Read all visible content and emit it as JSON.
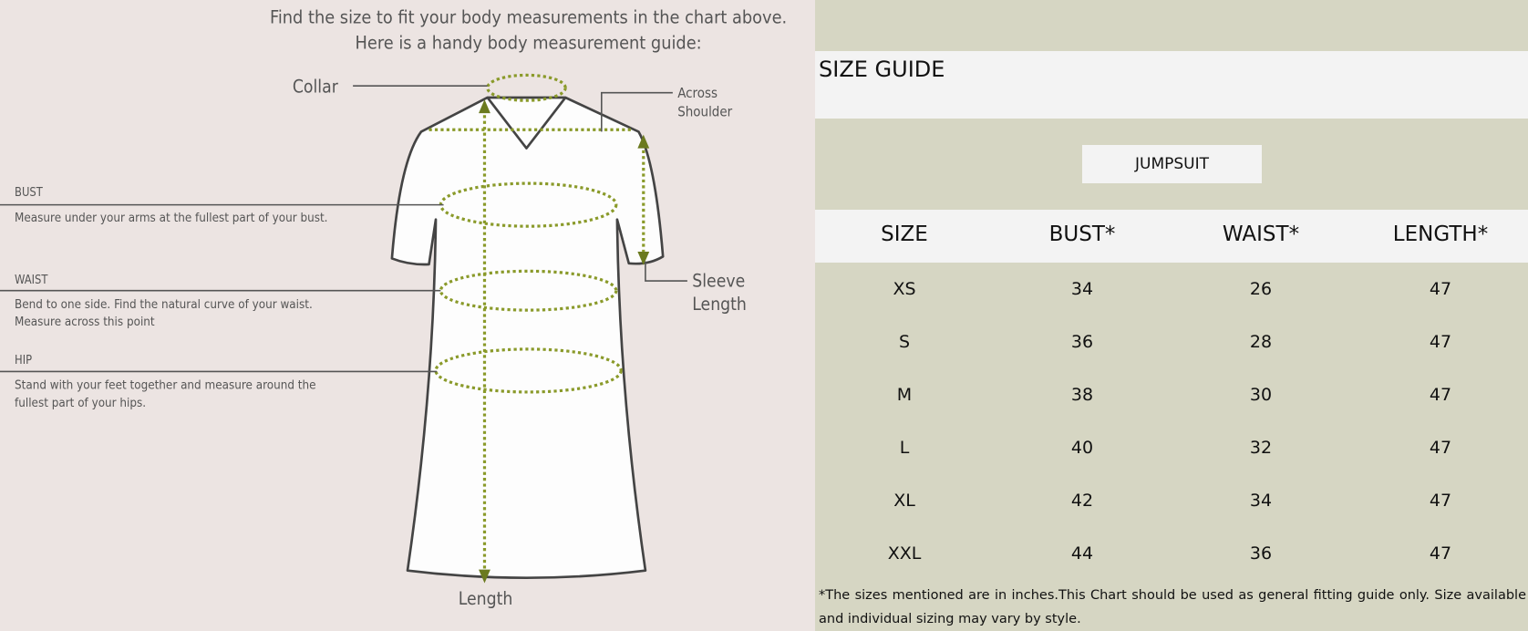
{
  "guide": {
    "title_line1": "Find the size to fit your body measurements in the chart above.",
    "title_line2": "Here is a handy body measurement guide:",
    "collar": "Collar",
    "across_shoulder": [
      "Across",
      "Shoulder"
    ],
    "sleeve_length": [
      "Sleeve",
      "Length"
    ],
    "length": "Length",
    "bust": {
      "label": "BUST",
      "text": [
        "Measure under your arms at the fullest part of your bust."
      ]
    },
    "waist": {
      "label": "WAIST",
      "text": [
        "Bend to one side. Find the natural curve of your waist.",
        "Measure across this point"
      ]
    },
    "hip": {
      "label": "HIP",
      "text": [
        "Stand with your feet together and measure around the",
        "fullest part of your hips."
      ]
    }
  },
  "size_guide": {
    "title": "SIZE GUIDE",
    "category": "JUMPSUIT",
    "headers": [
      "SIZE",
      "BUST*",
      "WAIST*",
      "LENGTH*"
    ],
    "rows": [
      [
        "XS",
        "34",
        "26",
        "47"
      ],
      [
        "S",
        "36",
        "28",
        "47"
      ],
      [
        "M",
        "38",
        "30",
        "47"
      ],
      [
        "L",
        "40",
        "32",
        "47"
      ],
      [
        "XL",
        "42",
        "34",
        "47"
      ],
      [
        "XXL",
        "44",
        "36",
        "47"
      ]
    ],
    "footnote": "*The sizes mentioned are in inches.This Chart should be used as general fitting guide only. Size available and individual sizing may vary by style."
  },
  "colors": {
    "left_bg": "#ece4e2",
    "right_bg": "#d6d6c3",
    "band": "#f3f3f3",
    "measure_dots": "#8a9a2a"
  }
}
